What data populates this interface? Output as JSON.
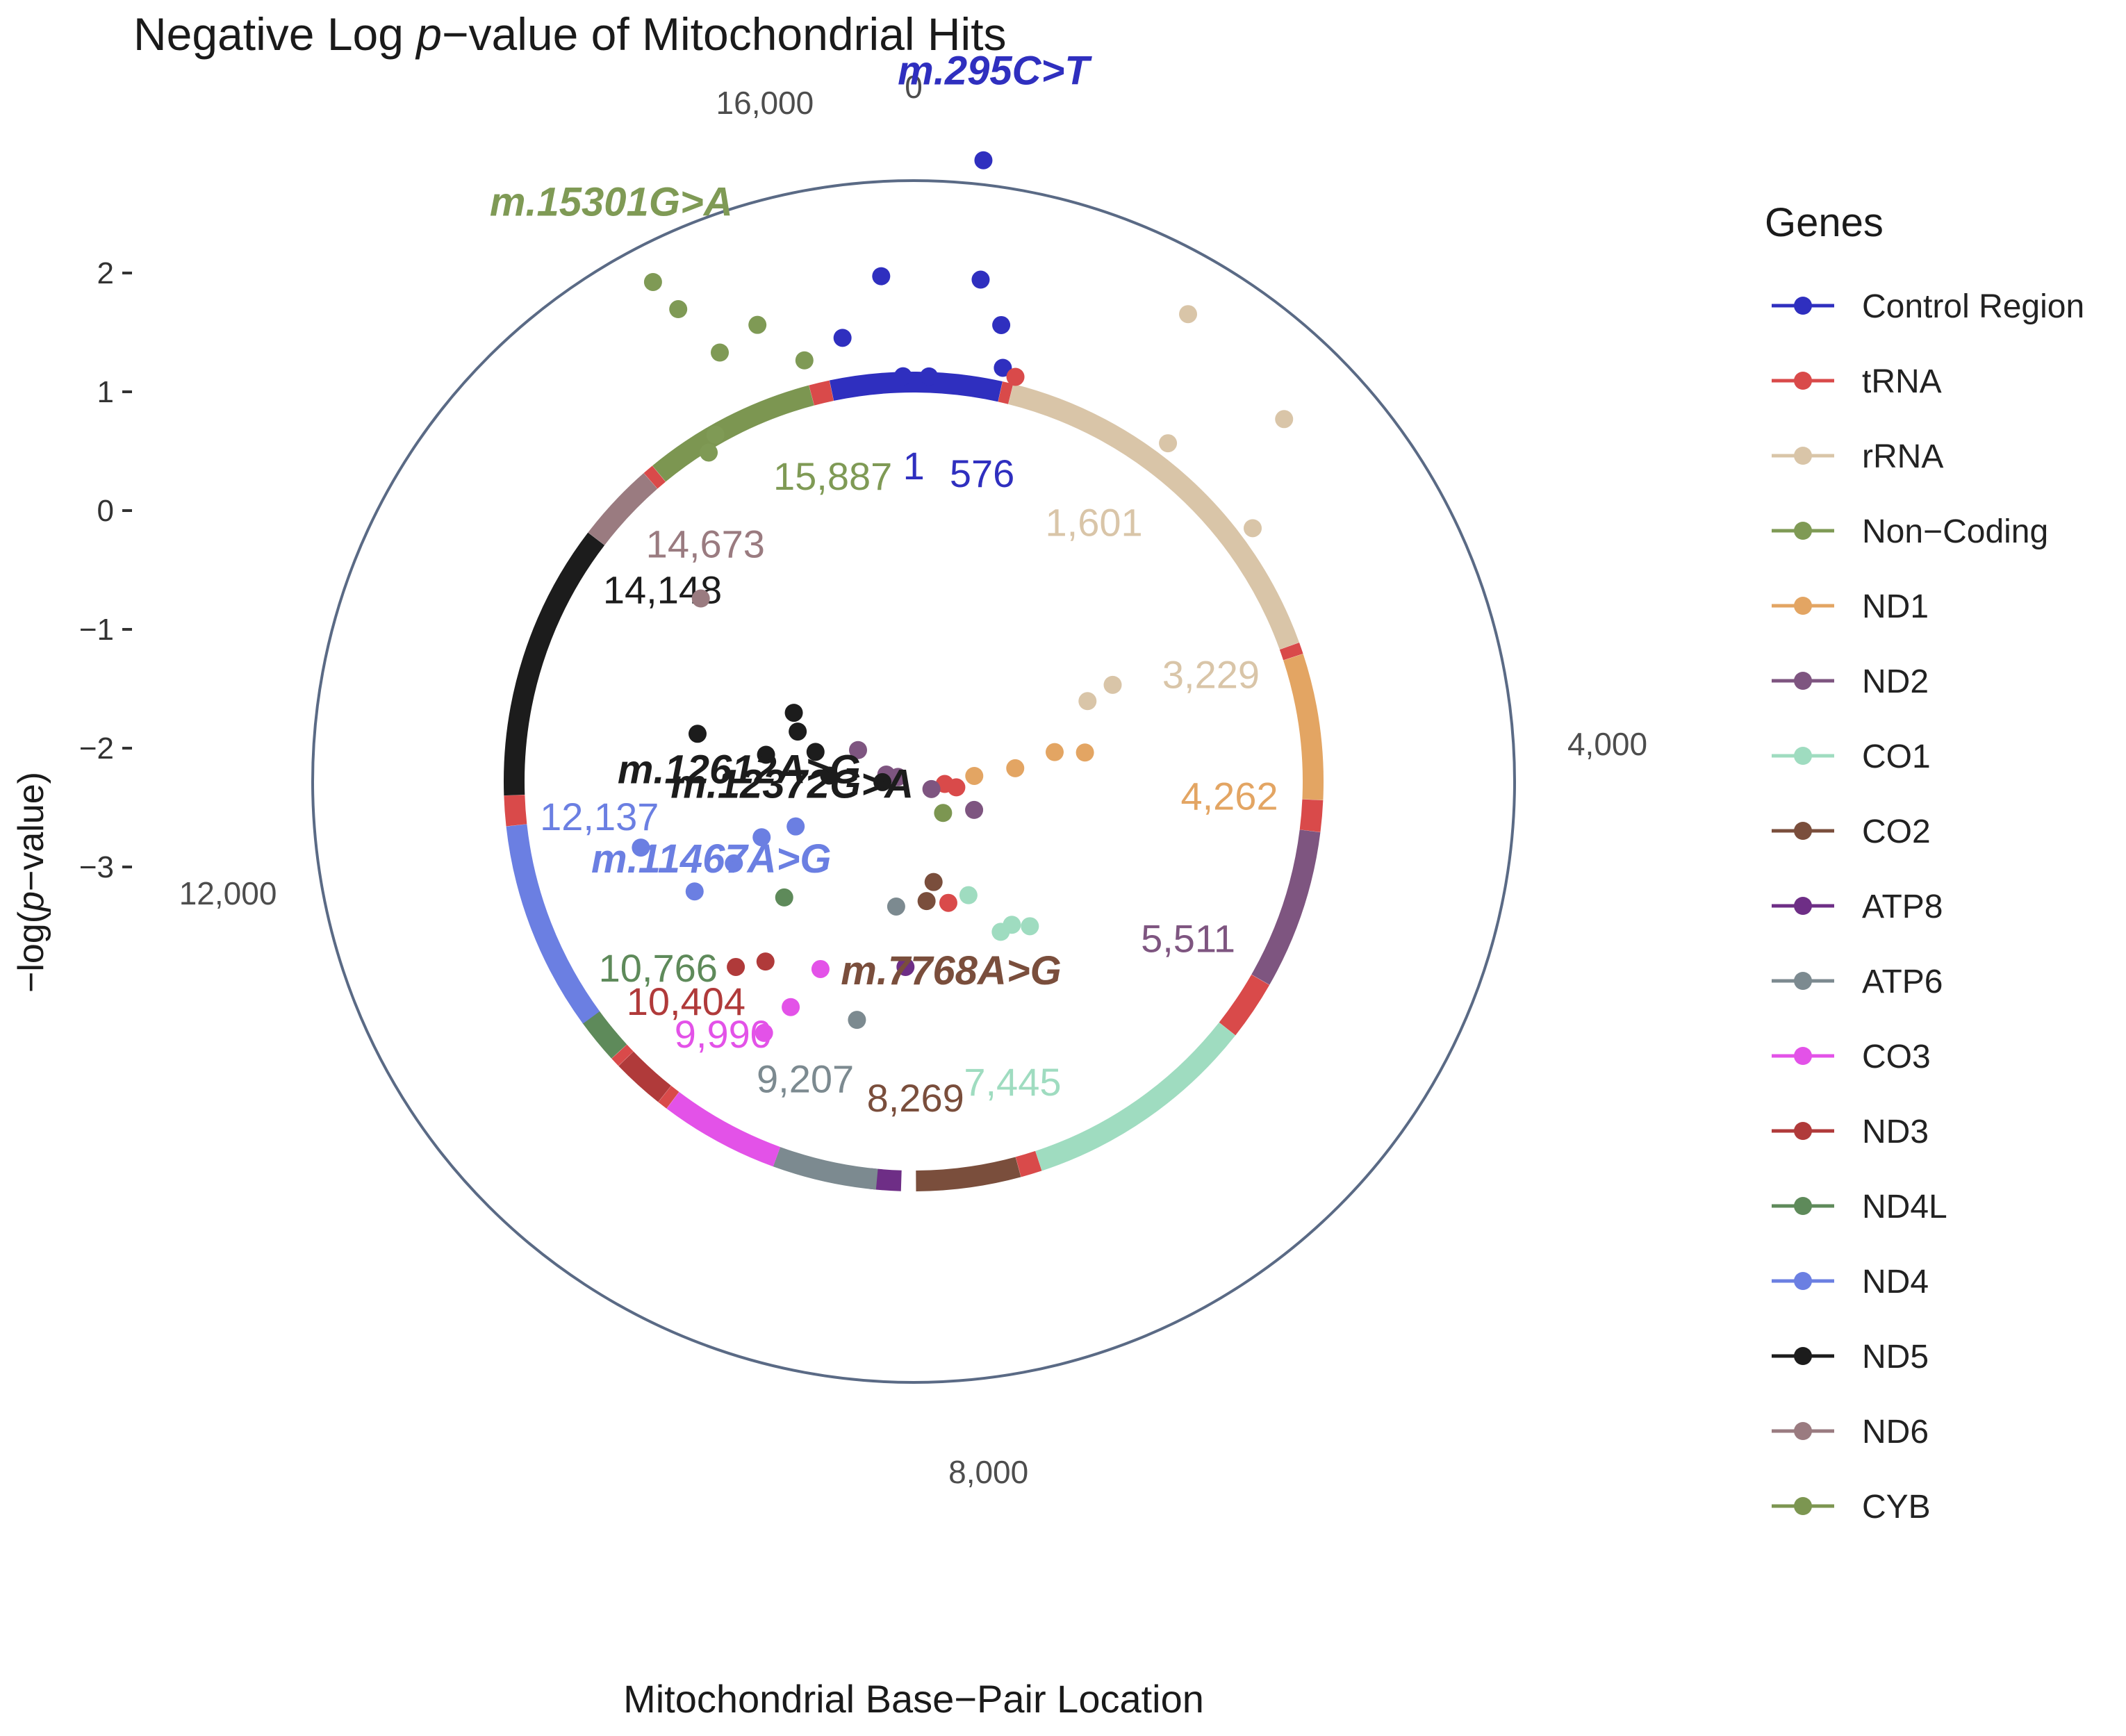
{
  "chart_data": {
    "type": "scatter",
    "title_parts": [
      "Negative Log ",
      "p",
      "−value of Mitochondrial Hits"
    ],
    "xlabel": "Mitochondrial Base−Pair Location",
    "ylabel_parts": [
      "−log(",
      "p",
      "−value)"
    ],
    "y_ticks": [
      "2",
      "1",
      "0",
      "−1",
      "−2",
      "−3"
    ],
    "y_tick_values": [
      2,
      1,
      0,
      -1,
      -2,
      -3
    ],
    "circle_ticks": [
      {
        "label": "0",
        "bp": 0
      },
      {
        "label": "16,000",
        "bp": 16000
      },
      {
        "label": "4,000",
        "bp": 4000
      },
      {
        "label": "8,000",
        "bp": 8000
      },
      {
        "label": "12,000",
        "bp": 12000
      }
    ],
    "genome_length": 16569,
    "legend_title": "Genes",
    "genes": [
      {
        "name": "Control Region",
        "color": "#2f2fbf"
      },
      {
        "name": "tRNA",
        "color": "#d94a4a"
      },
      {
        "name": "rRNA",
        "color": "#d9c5a8"
      },
      {
        "name": "Non−Coding",
        "color": "#7f9a55"
      },
      {
        "name": "ND1",
        "color": "#e3a563"
      },
      {
        "name": "ND2",
        "color": "#7e5580"
      },
      {
        "name": "CO1",
        "color": "#9fdcc0"
      },
      {
        "name": "CO2",
        "color": "#7a4e3c"
      },
      {
        "name": "ATP8",
        "color": "#6e2e86"
      },
      {
        "name": "ATP6",
        "color": "#7c8a90"
      },
      {
        "name": "CO3",
        "color": "#e352e8"
      },
      {
        "name": "ND3",
        "color": "#b03a3a"
      },
      {
        "name": "ND4L",
        "color": "#5e8a5a"
      },
      {
        "name": "ND4",
        "color": "#6b7fe2"
      },
      {
        "name": "ND5",
        "color": "#1c1c1c"
      },
      {
        "name": "ND6",
        "color": "#9a7b80"
      },
      {
        "name": "CYB",
        "color": "#7c9651"
      }
    ],
    "segments": [
      {
        "gene": "Control Region",
        "start": 16024,
        "end": 576
      },
      {
        "gene": "tRNA",
        "start": 577,
        "end": 647
      },
      {
        "gene": "rRNA",
        "start": 648,
        "end": 3229
      },
      {
        "gene": "tRNA",
        "start": 3230,
        "end": 3306
      },
      {
        "gene": "ND1",
        "start": 3307,
        "end": 4262
      },
      {
        "gene": "tRNA",
        "start": 4263,
        "end": 4469
      },
      {
        "gene": "ND2",
        "start": 4470,
        "end": 5511
      },
      {
        "gene": "tRNA",
        "start": 5512,
        "end": 5903
      },
      {
        "gene": "CO1",
        "start": 5904,
        "end": 7445
      },
      {
        "gene": "tRNA",
        "start": 7446,
        "end": 7585
      },
      {
        "gene": "CO2",
        "start": 7586,
        "end": 8269
      },
      {
        "gene": "ATP8",
        "start": 8366,
        "end": 8572
      },
      {
        "gene": "ATP6",
        "start": 8527,
        "end": 9207
      },
      {
        "gene": "CO3",
        "start": 9207,
        "end": 9990
      },
      {
        "gene": "tRNA",
        "start": 9991,
        "end": 10058
      },
      {
        "gene": "ND3",
        "start": 10059,
        "end": 10404
      },
      {
        "gene": "tRNA",
        "start": 10405,
        "end": 10469
      },
      {
        "gene": "ND4L",
        "start": 10470,
        "end": 10766
      },
      {
        "gene": "ND4",
        "start": 10760,
        "end": 12137
      },
      {
        "gene": "tRNA",
        "start": 12138,
        "end": 12336
      },
      {
        "gene": "ND5",
        "start": 12337,
        "end": 14148
      },
      {
        "gene": "ND6",
        "start": 14149,
        "end": 14673
      },
      {
        "gene": "tRNA",
        "start": 14674,
        "end": 14746
      },
      {
        "gene": "CYB",
        "start": 14747,
        "end": 15887
      },
      {
        "gene": "tRNA",
        "start": 15888,
        "end": 16023
      }
    ],
    "boundary_labels": [
      {
        "text": "576",
        "bp": 576,
        "gene": "Control Region"
      },
      {
        "text": "1",
        "bp": 1,
        "gene": "Control Region"
      },
      {
        "text": "15,887",
        "bp": 15887,
        "gene": "Non−Coding"
      },
      {
        "text": "1,601",
        "bp": 1601,
        "gene": "rRNA"
      },
      {
        "text": "3,229",
        "bp": 3229,
        "gene": "rRNA"
      },
      {
        "text": "4,262",
        "bp": 4262,
        "gene": "ND1"
      },
      {
        "text": "5,511",
        "bp": 5511,
        "gene": "ND2"
      },
      {
        "text": "7,445",
        "bp": 7445,
        "gene": "CO1"
      },
      {
        "text": "8,269",
        "bp": 8269,
        "gene": "CO2"
      },
      {
        "text": "9,207",
        "bp": 9207,
        "gene": "ATP6"
      },
      {
        "text": "9,990",
        "bp": 9990,
        "gene": "CO3"
      },
      {
        "text": "10,404",
        "bp": 10404,
        "gene": "ND3"
      },
      {
        "text": "10,766",
        "bp": 10766,
        "gene": "ND4L"
      },
      {
        "text": "12,137",
        "bp": 12137,
        "gene": "ND4"
      },
      {
        "text": "14,148",
        "bp": 14148,
        "gene": "ND5"
      },
      {
        "text": "14,673",
        "bp": 14673,
        "gene": "ND6"
      }
    ],
    "hits": [
      {
        "text": "m.295C>T",
        "bp": 295,
        "logp": 1.9,
        "gene": "Control Region"
      },
      {
        "text": "m.15301G>A",
        "bp": 15301,
        "logp": 1.38,
        "gene": "Non−Coding"
      },
      {
        "text": "m.12612A>G",
        "bp": 12612,
        "logp": -2.65,
        "gene": "ND5"
      },
      {
        "text": "m.12372G>A",
        "bp": 12372,
        "logp": -3.1,
        "gene": "ND5"
      },
      {
        "text": "m.11467A>G",
        "bp": 11467,
        "logp": -2.3,
        "gene": "ND4"
      },
      {
        "text": "m.7768A>G",
        "bp": 7768,
        "logp": -2.5,
        "gene": "CO2"
      }
    ],
    "points": [
      {
        "bp": 295,
        "logp": 1.9,
        "gene": "Control Region"
      },
      {
        "bp": 16400,
        "logp": 0.9,
        "gene": "Control Region"
      },
      {
        "bp": 350,
        "logp": 0.9,
        "gene": "Control Region"
      },
      {
        "bp": 16150,
        "logp": 0.42,
        "gene": "Control Region"
      },
      {
        "bp": 500,
        "logp": 0.55,
        "gene": "Control Region"
      },
      {
        "bp": 560,
        "logp": 0.2,
        "gene": "Control Region"
      },
      {
        "bp": 16500,
        "logp": 0.05,
        "gene": "Control Region"
      },
      {
        "bp": 100,
        "logp": 0.05,
        "gene": "Control Region"
      },
      {
        "bp": 650,
        "logp": 0.15,
        "gene": "tRNA"
      },
      {
        "bp": 15301,
        "logp": 1.38,
        "gene": "Non−Coding"
      },
      {
        "bp": 15350,
        "logp": 1.08,
        "gene": "Non−Coding"
      },
      {
        "bp": 15700,
        "logp": 0.7,
        "gene": "Non−Coding"
      },
      {
        "bp": 15450,
        "logp": 0.6,
        "gene": "Non−Coding"
      },
      {
        "bp": 15900,
        "logp": 0.3,
        "gene": "Non−Coding"
      },
      {
        "bp": 15200,
        "logp": 0.0,
        "gene": "Non−Coding"
      },
      {
        "bp": 15100,
        "logp": -0.1,
        "gene": "Non−Coding"
      },
      {
        "bp": 1400,
        "logp": 1.2,
        "gene": "rRNA"
      },
      {
        "bp": 2100,
        "logp": 1.0,
        "gene": "rRNA"
      },
      {
        "bp": 1700,
        "logp": 0.2,
        "gene": "rRNA"
      },
      {
        "bp": 1350,
        "logp": 0.0,
        "gene": "rRNA"
      },
      {
        "bp": 2450,
        "logp": 0.2,
        "gene": "rRNA"
      },
      {
        "bp": 2950,
        "logp": -1.5,
        "gene": "rRNA"
      },
      {
        "bp": 3000,
        "logp": -1.75,
        "gene": "rRNA"
      },
      {
        "bp": 3700,
        "logp": -1.9,
        "gene": "ND1"
      },
      {
        "bp": 3600,
        "logp": -2.15,
        "gene": "ND1"
      },
      {
        "bp": 3800,
        "logp": -2.5,
        "gene": "ND1"
      },
      {
        "bp": 3900,
        "logp": -2.85,
        "gene": "ND1"
      },
      {
        "bp": 4350,
        "logp": -3.1,
        "gene": "tRNA"
      },
      {
        "bp": 4500,
        "logp": -3.0,
        "gene": "tRNA"
      },
      {
        "bp": 4800,
        "logp": -3.6,
        "gene": "ND2"
      },
      {
        "bp": 4900,
        "logp": -3.5,
        "gene": "ND2"
      },
      {
        "bp": 5200,
        "logp": -3.2,
        "gene": "ND2"
      },
      {
        "bp": 5300,
        "logp": -2.8,
        "gene": "ND2"
      },
      {
        "bp": 5500,
        "logp": -3.9,
        "gene": "ND2"
      },
      {
        "bp": 6300,
        "logp": -3.0,
        "gene": "CYB"
      },
      {
        "bp": 6500,
        "logp": -1.8,
        "gene": "CO1"
      },
      {
        "bp": 6700,
        "logp": -1.9,
        "gene": "CO1"
      },
      {
        "bp": 6900,
        "logp": -1.9,
        "gene": "CO1"
      },
      {
        "bp": 7100,
        "logp": -2.3,
        "gene": "CO1"
      },
      {
        "bp": 7550,
        "logp": -2.3,
        "gene": "tRNA"
      },
      {
        "bp": 7768,
        "logp": -2.5,
        "gene": "CO2"
      },
      {
        "bp": 8000,
        "logp": -2.35,
        "gene": "CO2"
      },
      {
        "bp": 8400,
        "logp": -1.8,
        "gene": "ATP8"
      },
      {
        "bp": 8650,
        "logp": -2.3,
        "gene": "ATP6"
      },
      {
        "bp": 8900,
        "logp": -1.3,
        "gene": "ATP6"
      },
      {
        "bp": 9600,
        "logp": -1.2,
        "gene": "CO3"
      },
      {
        "bp": 9700,
        "logp": -0.9,
        "gene": "CO3"
      },
      {
        "bp": 9500,
        "logp": -1.6,
        "gene": "CO3"
      },
      {
        "bp": 10100,
        "logp": -1.4,
        "gene": "ND3"
      },
      {
        "bp": 10300,
        "logp": -1.2,
        "gene": "ND3"
      },
      {
        "bp": 10500,
        "logp": -1.9,
        "gene": "ND4L"
      },
      {
        "bp": 11467,
        "logp": -2.3,
        "gene": "ND4"
      },
      {
        "bp": 11500,
        "logp": -2.0,
        "gene": "ND4"
      },
      {
        "bp": 11200,
        "logp": -1.3,
        "gene": "ND4"
      },
      {
        "bp": 11800,
        "logp": -1.0,
        "gene": "ND4"
      },
      {
        "bp": 11300,
        "logp": -1.7,
        "gene": "ND4"
      },
      {
        "bp": 12372,
        "logp": -3.1,
        "gene": "ND5"
      },
      {
        "bp": 12612,
        "logp": -2.65,
        "gene": "ND5"
      },
      {
        "bp": 12900,
        "logp": -2.1,
        "gene": "ND5"
      },
      {
        "bp": 13200,
        "logp": -2.5,
        "gene": "ND5"
      },
      {
        "bp": 13500,
        "logp": -2.3,
        "gene": "ND5"
      },
      {
        "bp": 13800,
        "logp": -2.2,
        "gene": "ND5"
      },
      {
        "bp": 13000,
        "logp": -1.5,
        "gene": "ND5"
      },
      {
        "bp": 14300,
        "logp": -1.0,
        "gene": "ND6"
      }
    ]
  }
}
